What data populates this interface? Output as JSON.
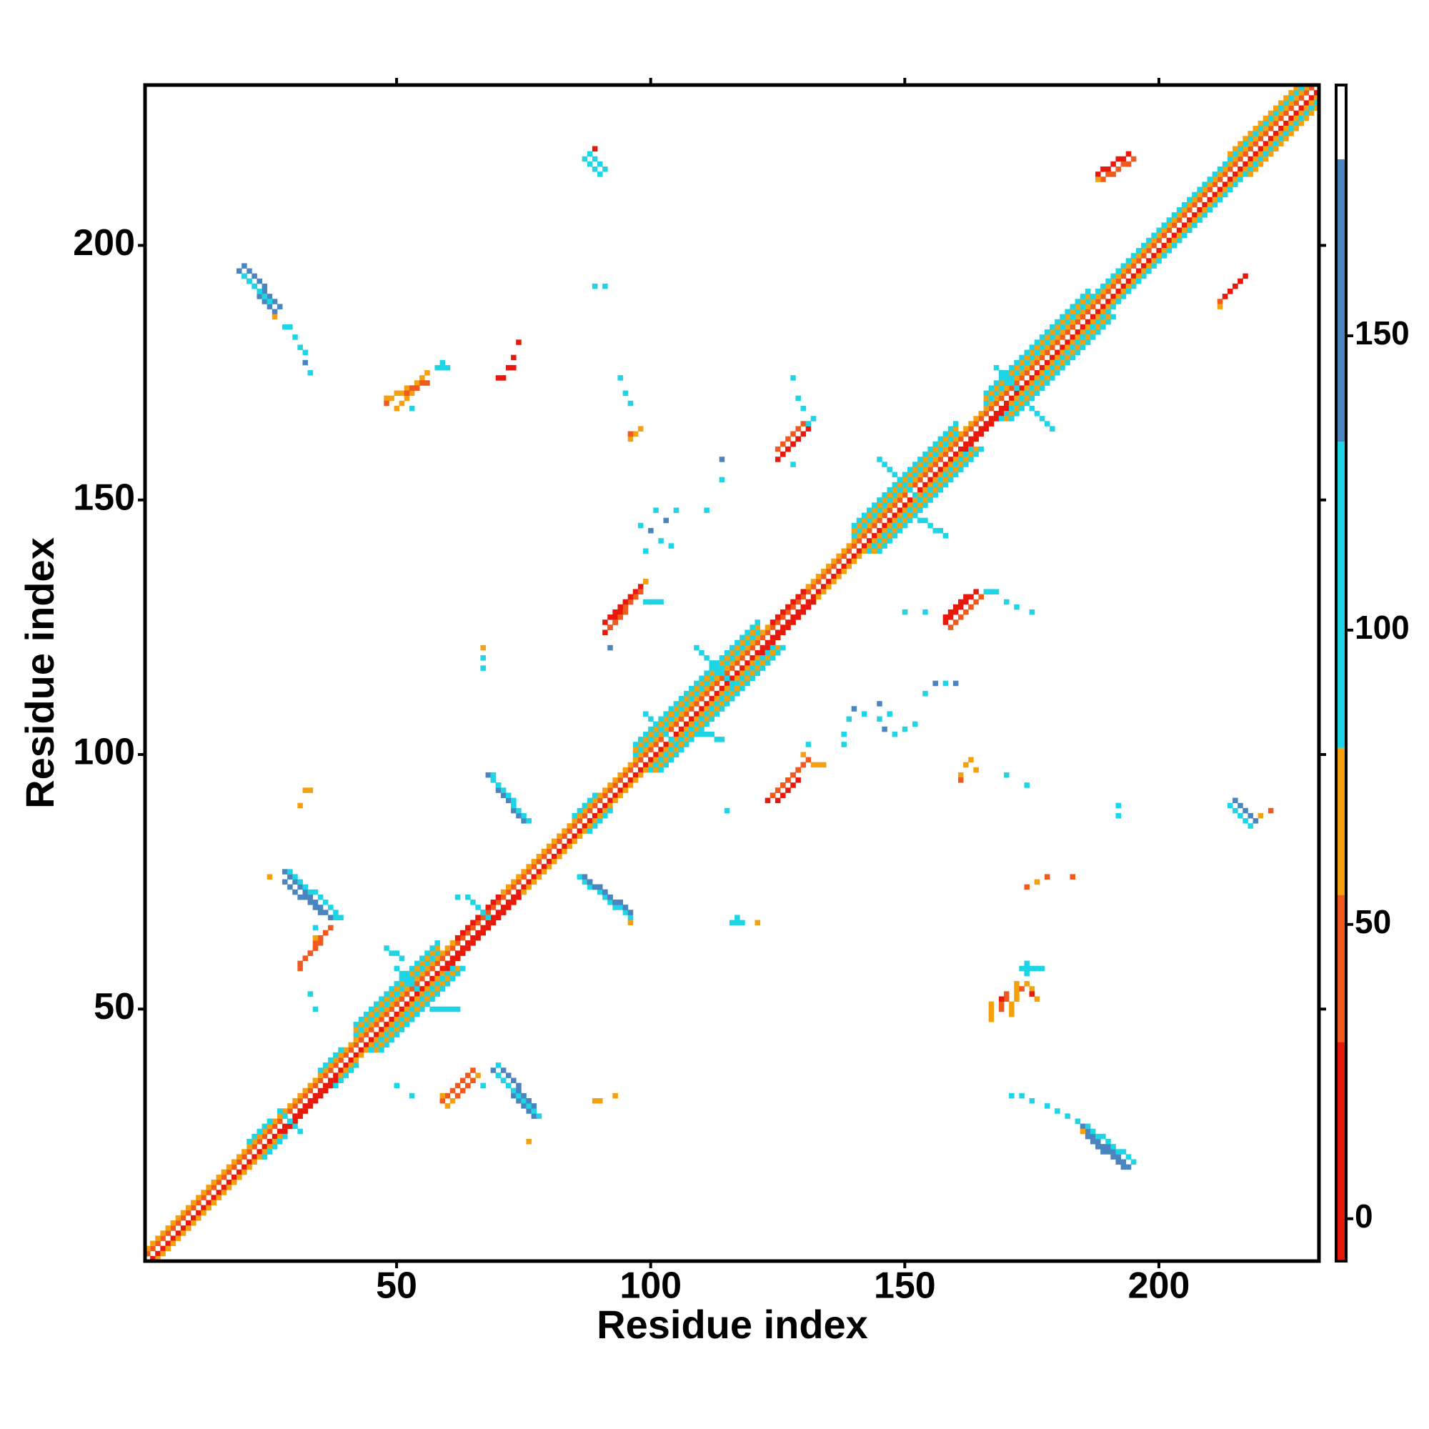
{
  "chart_data": {
    "type": "heatmap",
    "xlabel": "Residue index",
    "ylabel": "Residue index",
    "xlim": [
      0.5,
      231.5
    ],
    "ylim": [
      0.5,
      231.5
    ],
    "xticks": [
      50,
      100,
      150,
      200
    ],
    "yticks": [
      50,
      100,
      150,
      200
    ],
    "colorbar": {
      "lim": [
        -7.2,
        192.6
      ],
      "ticks": [
        0,
        50,
        100,
        150
      ],
      "bins": [
        {
          "from": -7.2,
          "to": 30,
          "color": "#e8180c"
        },
        {
          "from": 30,
          "to": 55,
          "color": "#f05a1e"
        },
        {
          "from": 55,
          "to": 80,
          "color": "#f5a00f"
        },
        {
          "from": 80,
          "to": 132,
          "color": "#1ed5e5"
        },
        {
          "from": 132,
          "to": 180,
          "color": "#4a85c0"
        },
        {
          "from": 180,
          "to": 192.6,
          "color": "#ffffff"
        }
      ]
    },
    "segments": [
      [
        2,
        1,
        231,
        230,
        10
      ],
      [
        1,
        2,
        230,
        231,
        40
      ],
      [
        3,
        1,
        231,
        229,
        65
      ],
      [
        1,
        3,
        229,
        231,
        65
      ],
      [
        28,
        26,
        38,
        36,
        10
      ],
      [
        60,
        58,
        74,
        72,
        10
      ],
      [
        122,
        120,
        132,
        130,
        10
      ],
      [
        162,
        160,
        170,
        168,
        10
      ],
      [
        62,
        64,
        70,
        72,
        10
      ],
      [
        124,
        126,
        130,
        132,
        10
      ],
      [
        45,
        42,
        61,
        58,
        105
      ],
      [
        100,
        97,
        124,
        121,
        105
      ],
      [
        143,
        140,
        163,
        160,
        105
      ],
      [
        169,
        166,
        189,
        186,
        105
      ],
      [
        217,
        214,
        231,
        228,
        105
      ],
      [
        42,
        45,
        58,
        61,
        105
      ],
      [
        97,
        100,
        121,
        124,
        105
      ],
      [
        140,
        143,
        160,
        163,
        105
      ],
      [
        166,
        169,
        186,
        189,
        105
      ],
      [
        214,
        217,
        228,
        231,
        105
      ],
      [
        46,
        42,
        62,
        58,
        65
      ],
      [
        101,
        97,
        125,
        121,
        65
      ],
      [
        144,
        140,
        164,
        160,
        65
      ],
      [
        170,
        166,
        190,
        186,
        65
      ],
      [
        218,
        214,
        231,
        227,
        65
      ],
      [
        42,
        46,
        58,
        62,
        65
      ],
      [
        97,
        101,
        121,
        125,
        65
      ],
      [
        140,
        144,
        160,
        164,
        65
      ],
      [
        166,
        170,
        186,
        190,
        65
      ],
      [
        214,
        218,
        227,
        231,
        65
      ],
      [
        47,
        42,
        63,
        58,
        105
      ],
      [
        102,
        97,
        126,
        121,
        105
      ],
      [
        145,
        140,
        165,
        160,
        105
      ],
      [
        171,
        166,
        191,
        186,
        105
      ],
      [
        42,
        47,
        58,
        63,
        105
      ],
      [
        97,
        102,
        121,
        126,
        105
      ],
      [
        140,
        145,
        160,
        165,
        105
      ],
      [
        166,
        171,
        186,
        191,
        105
      ],
      [
        190,
        187,
        216,
        213,
        105
      ],
      [
        187,
        190,
        213,
        216,
        105
      ],
      [
        24,
        21,
        28,
        25,
        105
      ],
      [
        21,
        24,
        25,
        28,
        105
      ],
      [
        27,
        30,
        31,
        26,
        105
      ],
      [
        38,
        35,
        42,
        39,
        105
      ],
      [
        35,
        38,
        39,
        42,
        105
      ],
      [
        88,
        85,
        92,
        89,
        105
      ],
      [
        85,
        88,
        89,
        92,
        105
      ],
      [
        50,
        58,
        54,
        54,
        105
      ],
      [
        57,
        50,
        62,
        50,
        105
      ],
      [
        48,
        62,
        51,
        60,
        105
      ],
      [
        64,
        72,
        68,
        68,
        105
      ],
      [
        99,
        108,
        106,
        101,
        105
      ],
      [
        109,
        121,
        116,
        114,
        105
      ],
      [
        110,
        104,
        114,
        103,
        105
      ],
      [
        145,
        158,
        152,
        151,
        105
      ],
      [
        152,
        147,
        158,
        143,
        105
      ],
      [
        168,
        176,
        172,
        172,
        105
      ],
      [
        175,
        168,
        179,
        164,
        105
      ],
      [
        19,
        195,
        26,
        187,
        155
      ],
      [
        20,
        196,
        27,
        188,
        155
      ],
      [
        20,
        194,
        25,
        189,
        105
      ],
      [
        26,
        186,
        26,
        186,
        65
      ],
      [
        28,
        184,
        29,
        184,
        105
      ],
      [
        30,
        182,
        30,
        182,
        105
      ],
      [
        31,
        180,
        32,
        179,
        105
      ],
      [
        32,
        177,
        32,
        177,
        155
      ],
      [
        33,
        175,
        33,
        175,
        105
      ],
      [
        48,
        170,
        53,
        172,
        65
      ],
      [
        50,
        168,
        55,
        174,
        65
      ],
      [
        48,
        169,
        48,
        169,
        40
      ],
      [
        52,
        171,
        56,
        173,
        40
      ],
      [
        53,
        168,
        53,
        168,
        105
      ],
      [
        56,
        175,
        56,
        175,
        65
      ],
      [
        58,
        176,
        60,
        176,
        105
      ],
      [
        59,
        177,
        59,
        177,
        105
      ],
      [
        70,
        174,
        71,
        174,
        10
      ],
      [
        72,
        176,
        73,
        176,
        10
      ],
      [
        73,
        178,
        73,
        178,
        10
      ],
      [
        74,
        181,
        74,
        181,
        10
      ],
      [
        88,
        218,
        91,
        215,
        105
      ],
      [
        87,
        217,
        90,
        214,
        105
      ],
      [
        89,
        219,
        89,
        219,
        10
      ],
      [
        89,
        192,
        89,
        192,
        105
      ],
      [
        91,
        192,
        91,
        192,
        105
      ],
      [
        94,
        174,
        94,
        174,
        105
      ],
      [
        95,
        171,
        95,
        171,
        105
      ],
      [
        96,
        169,
        96,
        169,
        105
      ],
      [
        96,
        162,
        98,
        164,
        65
      ],
      [
        96,
        163,
        96,
        163,
        40
      ],
      [
        125,
        160,
        130,
        165,
        40
      ],
      [
        126,
        159,
        131,
        164,
        10
      ],
      [
        125,
        158,
        129,
        162,
        10
      ],
      [
        131,
        165,
        132,
        166,
        105
      ],
      [
        129,
        170,
        129,
        170,
        105
      ],
      [
        130,
        168,
        130,
        168,
        105
      ],
      [
        128,
        174,
        128,
        174,
        105
      ],
      [
        128,
        157,
        128,
        157,
        105
      ],
      [
        101,
        148,
        101,
        148,
        105
      ],
      [
        103,
        146,
        103,
        146,
        155
      ],
      [
        105,
        148,
        105,
        148,
        105
      ],
      [
        100,
        144,
        100,
        144,
        155
      ],
      [
        102,
        142,
        102,
        142,
        105
      ],
      [
        104,
        141,
        104,
        141,
        105
      ],
      [
        99,
        140,
        99,
        140,
        105
      ],
      [
        114,
        154,
        114,
        154,
        105
      ],
      [
        114,
        158,
        114,
        158,
        155
      ],
      [
        111,
        148,
        111,
        148,
        105
      ],
      [
        98,
        145,
        98,
        145,
        105
      ],
      [
        91,
        124,
        99,
        134,
        10
      ],
      [
        92,
        125,
        98,
        132,
        40
      ],
      [
        91,
        126,
        96,
        131,
        10
      ],
      [
        99,
        130,
        102,
        130,
        105
      ],
      [
        99,
        134,
        99,
        134,
        65
      ],
      [
        92,
        121,
        92,
        121,
        155
      ],
      [
        31,
        59,
        36,
        65,
        40
      ],
      [
        32,
        60,
        37,
        66,
        40
      ],
      [
        31,
        58,
        31,
        58,
        40
      ],
      [
        34,
        64,
        34,
        64,
        65
      ],
      [
        34,
        66,
        34,
        66,
        105
      ],
      [
        28,
        77,
        37,
        68,
        155
      ],
      [
        29,
        77,
        38,
        69,
        105
      ],
      [
        28,
        75,
        35,
        69,
        155
      ],
      [
        38,
        68,
        39,
        68,
        105
      ],
      [
        32,
        93,
        33,
        93,
        65
      ],
      [
        31,
        90,
        31,
        90,
        65
      ],
      [
        25,
        76,
        25,
        76,
        65
      ],
      [
        67,
        121,
        67,
        121,
        65
      ],
      [
        67,
        119,
        67,
        119,
        105
      ],
      [
        67,
        117,
        67,
        117,
        105
      ],
      [
        68,
        96,
        75,
        87,
        155
      ],
      [
        69,
        95,
        76,
        87,
        105
      ],
      [
        69,
        96,
        69,
        96,
        105
      ],
      [
        33,
        53,
        33,
        53,
        105
      ],
      [
        34,
        50,
        34,
        50,
        105
      ],
      [
        62,
        72,
        62,
        72,
        105
      ],
      [
        86,
        76,
        96,
        68,
        105
      ],
      [
        87,
        76,
        96,
        69,
        155
      ],
      [
        88,
        75,
        95,
        70,
        155
      ],
      [
        96,
        67,
        96,
        67,
        65
      ],
      [
        59,
        32,
        65,
        38,
        40
      ],
      [
        60,
        31,
        66,
        37,
        65
      ],
      [
        62,
        33,
        65,
        36,
        40
      ],
      [
        67,
        35,
        67,
        35,
        105
      ],
      [
        59,
        33,
        59,
        33,
        65
      ],
      [
        69,
        38,
        77,
        29,
        155
      ],
      [
        70,
        37,
        78,
        29,
        105
      ],
      [
        71,
        38,
        77,
        31,
        155
      ],
      [
        70,
        39,
        70,
        39,
        105
      ],
      [
        76,
        24,
        76,
        24,
        65
      ],
      [
        89,
        32,
        90,
        32,
        65
      ],
      [
        93,
        33,
        93,
        33,
        65
      ],
      [
        50,
        35,
        50,
        35,
        105
      ],
      [
        53,
        33,
        53,
        33,
        105
      ],
      [
        116,
        67,
        118,
        67,
        105
      ],
      [
        117,
        68,
        117,
        68,
        105
      ],
      [
        121,
        67,
        121,
        67,
        65
      ],
      [
        115,
        89,
        115,
        89,
        105
      ],
      [
        123,
        91,
        130,
        98,
        10
      ],
      [
        124,
        92,
        131,
        99,
        40
      ],
      [
        125,
        91,
        129,
        95,
        10
      ],
      [
        130,
        100,
        130,
        100,
        65
      ],
      [
        132,
        98,
        134,
        98,
        65
      ],
      [
        131,
        102,
        131,
        102,
        105
      ],
      [
        138,
        104,
        138,
        104,
        105
      ],
      [
        139,
        107,
        139,
        107,
        105
      ],
      [
        140,
        109,
        140,
        109,
        155
      ],
      [
        142,
        108,
        142,
        108,
        105
      ],
      [
        145,
        110,
        145,
        110,
        155
      ],
      [
        145,
        107,
        145,
        107,
        105
      ],
      [
        146,
        105,
        146,
        105,
        155
      ],
      [
        147,
        108,
        147,
        108,
        105
      ],
      [
        148,
        104,
        148,
        104,
        105
      ],
      [
        150,
        105,
        150,
        105,
        105
      ],
      [
        152,
        106,
        152,
        106,
        105
      ],
      [
        154,
        112,
        154,
        112,
        105
      ],
      [
        156,
        114,
        156,
        114,
        155
      ],
      [
        158,
        114,
        158,
        114,
        105
      ],
      [
        160,
        114,
        160,
        114,
        155
      ],
      [
        138,
        102,
        138,
        102,
        105
      ],
      [
        158,
        126,
        164,
        132,
        10
      ],
      [
        159,
        125,
        165,
        131,
        40
      ],
      [
        158,
        127,
        162,
        131,
        10
      ],
      [
        166,
        132,
        168,
        132,
        105
      ],
      [
        170,
        130,
        170,
        130,
        105
      ],
      [
        172,
        129,
        172,
        129,
        105
      ],
      [
        175,
        128,
        175,
        128,
        105
      ],
      [
        150,
        128,
        150,
        128,
        105
      ],
      [
        154,
        128,
        154,
        128,
        105
      ],
      [
        161,
        96,
        161,
        96,
        65
      ],
      [
        162,
        98,
        162,
        98,
        65
      ],
      [
        163,
        99,
        163,
        99,
        65
      ],
      [
        164,
        97,
        164,
        97,
        65
      ],
      [
        161,
        95,
        161,
        95,
        40
      ],
      [
        170,
        96,
        170,
        96,
        105
      ],
      [
        174,
        94,
        174,
        94,
        105
      ],
      [
        192,
        90,
        192,
        90,
        105
      ],
      [
        192,
        88,
        192,
        88,
        105
      ],
      [
        214,
        90,
        218,
        86,
        105
      ],
      [
        215,
        91,
        219,
        87,
        155
      ],
      [
        222,
        89,
        222,
        89,
        40
      ],
      [
        220,
        88,
        220,
        88,
        65
      ],
      [
        174,
        74,
        174,
        74,
        40
      ],
      [
        176,
        75,
        176,
        75,
        65
      ],
      [
        178,
        76,
        178,
        76,
        40
      ],
      [
        183,
        76,
        183,
        76,
        40
      ],
      [
        167,
        48,
        167,
        51,
        65
      ],
      [
        169,
        50,
        170,
        53,
        40
      ],
      [
        171,
        49,
        172,
        55,
        65
      ],
      [
        173,
        54,
        173,
        54,
        40
      ],
      [
        174,
        55,
        176,
        52,
        65
      ],
      [
        174,
        57,
        174,
        59,
        105
      ],
      [
        173,
        58,
        177,
        58,
        105
      ],
      [
        169,
        52,
        169,
        52,
        10
      ],
      [
        175,
        53,
        175,
        53,
        10
      ],
      [
        171,
        33,
        171,
        33,
        105
      ],
      [
        173,
        33,
        173,
        33,
        105
      ],
      [
        175,
        32,
        175,
        32,
        105
      ],
      [
        178,
        31,
        178,
        31,
        105
      ],
      [
        180,
        30,
        180,
        30,
        105
      ],
      [
        182,
        29,
        182,
        29,
        105
      ],
      [
        184,
        28,
        184,
        28,
        105
      ],
      [
        185,
        27,
        194,
        19,
        155
      ],
      [
        186,
        27,
        195,
        20,
        105
      ],
      [
        186,
        25,
        193,
        19,
        155
      ],
      [
        185,
        26,
        185,
        26,
        65
      ],
      [
        188,
        214,
        194,
        218,
        10
      ],
      [
        189,
        213,
        195,
        217,
        40
      ],
      [
        188,
        213,
        188,
        213,
        65
      ],
      [
        212,
        189,
        216,
        193,
        40
      ],
      [
        213,
        190,
        217,
        194,
        10
      ],
      [
        212,
        188,
        212,
        188,
        65
      ]
    ]
  }
}
